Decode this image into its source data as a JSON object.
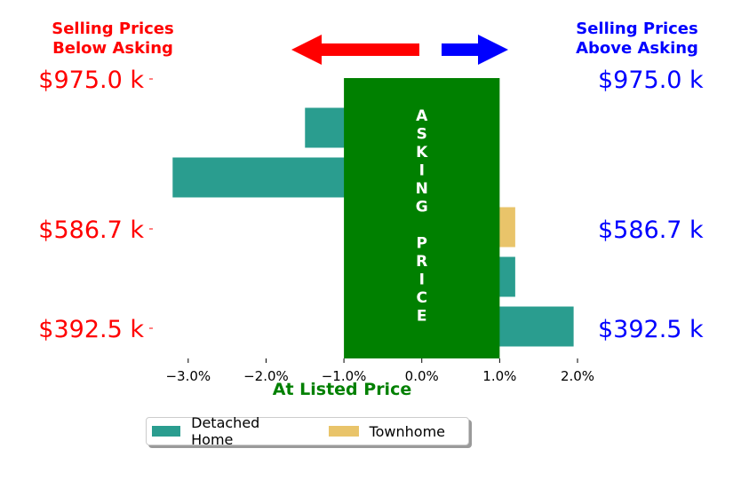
{
  "chart_data": {
    "type": "bar",
    "orientation": "horizontal",
    "header_left": [
      "Selling Prices",
      "Below Asking"
    ],
    "header_right": [
      "Selling Prices",
      "Above Asking"
    ],
    "xlabel": "At Listed Price",
    "center_band_text": [
      "A",
      "S",
      "K",
      "I",
      "N",
      "G",
      "",
      "P",
      "R",
      "I",
      "C",
      "E"
    ],
    "xlim": [
      -3.5,
      2.0
    ],
    "x_ticks": [
      -3,
      -2,
      -1,
      0,
      1,
      2
    ],
    "x_tick_labels": [
      "−3.0%",
      "−2.0%",
      "−1.0%",
      "0.0%",
      "1.0%",
      "2.0%"
    ],
    "y_tick_labels": [
      "$975.0 k",
      "$586.7 k",
      "$392.5 k"
    ],
    "bars": [
      {
        "series": "Detached Home",
        "value": -1.5
      },
      {
        "series": "Detached Home",
        "value": -3.2
      },
      {
        "series": "Townhome",
        "value": 1.2
      },
      {
        "series": "Detached Home",
        "value": 1.2
      },
      {
        "series": "Detached Home",
        "value": 1.95
      }
    ],
    "band": [
      -1.0,
      1.0
    ],
    "legend": [
      {
        "name": "Detached Home",
        "color": "#2a9d8f"
      },
      {
        "name": "Townhome",
        "color": "#e9c46a"
      }
    ],
    "legend_position": "bottom-center"
  },
  "colors": {
    "below": "#ff0000",
    "above": "#0000ff",
    "band": "#008000",
    "detached": "#2a9d8f",
    "townhome": "#e9c46a"
  }
}
